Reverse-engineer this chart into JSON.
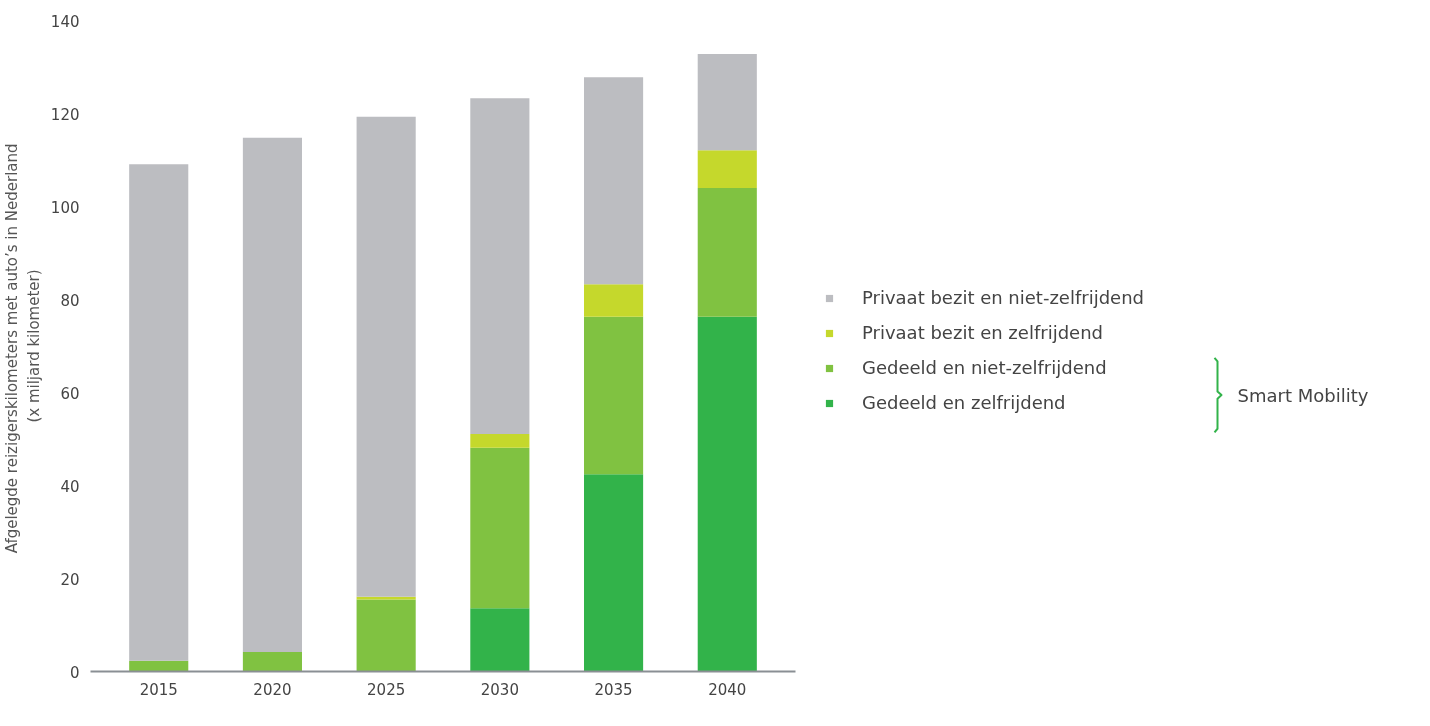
{
  "chart_data": {
    "type": "bar",
    "stacked": true,
    "ylabel": "Afgelegde reizigerskilometers met auto’s  in Nederland\n(x miljard kilometer)",
    "categories": [
      "2015",
      "2020",
      "2025",
      "2030",
      "2035",
      "2040"
    ],
    "ylim": [
      0,
      140
    ],
    "yticks": [
      0,
      20,
      40,
      60,
      80,
      100,
      120,
      140
    ],
    "grid": false,
    "legend": "right",
    "annotations": [
      "Smart Mobility"
    ],
    "series": [
      {
        "name": "Gedeeld en zelfrijdend",
        "color": "#32b34a",
        "values": [
          0,
          0,
          0,
          13.6,
          42.4,
          76.3
        ]
      },
      {
        "name": "Gedeeld en niet-zelfrijdend",
        "color": "#80c241",
        "values": [
          2.3,
          4.2,
          15.5,
          34.5,
          33.9,
          27.7
        ]
      },
      {
        "name": "Privaat bezit en zelfrijdend",
        "color": "#c5d82c",
        "values": [
          0,
          0,
          0.6,
          3.0,
          7.0,
          8.1
        ]
      },
      {
        "name": "Privaat bezit en niet-zelfrijdend",
        "color": "#bcbdc1",
        "values": [
          106.8,
          110.6,
          103.2,
          72.2,
          44.5,
          20.7
        ]
      }
    ]
  }
}
